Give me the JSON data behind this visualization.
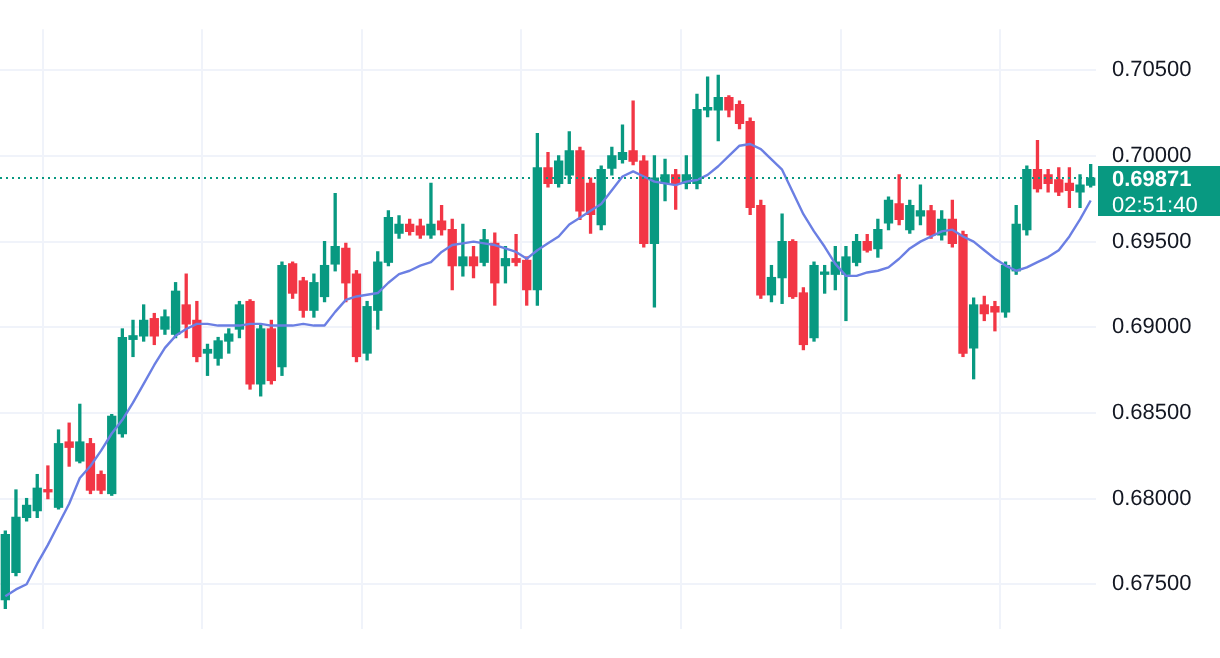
{
  "chart_data": {
    "type": "candlestick",
    "categories": [
      null,
      null,
      null,
      null,
      null,
      null,
      null,
      null,
      null,
      null,
      null,
      null,
      null,
      null,
      null,
      null,
      null,
      null,
      null,
      null,
      null,
      null,
      null,
      null,
      null,
      null,
      null,
      null,
      null,
      null,
      null,
      null,
      null,
      null,
      null,
      null,
      null,
      null,
      null,
      null,
      null,
      null,
      null,
      null,
      null,
      null,
      null,
      null,
      null,
      null,
      null,
      null,
      null,
      null,
      null,
      null,
      null,
      null,
      null,
      null,
      null,
      null,
      null,
      null,
      null,
      null,
      null,
      null,
      null,
      null,
      null,
      null,
      null,
      null,
      null,
      null,
      null,
      null,
      null,
      null,
      null,
      null,
      null,
      null,
      null,
      null,
      null,
      null,
      null,
      null,
      null,
      null,
      null,
      null,
      null,
      null,
      null,
      null,
      null,
      null,
      null,
      null,
      null
    ],
    "ohlc": [
      [
        0.6741,
        0.6781,
        0.6736,
        0.6779
      ],
      [
        0.6757,
        0.6805,
        0.6755,
        0.6789
      ],
      [
        0.6789,
        0.68,
        0.6787,
        0.6796
      ],
      [
        0.6793,
        0.6814,
        0.6789,
        0.6806
      ],
      [
        0.6805,
        0.6819,
        0.68,
        0.6804
      ],
      [
        0.6795,
        0.684,
        0.6794,
        0.6832
      ],
      [
        0.6833,
        0.6844,
        0.6819,
        0.683
      ],
      [
        0.6822,
        0.6855,
        0.6821,
        0.6833
      ],
      [
        0.6832,
        0.6835,
        0.6803,
        0.6805
      ],
      [
        0.6814,
        0.6816,
        0.6803,
        0.6805
      ],
      [
        0.6803,
        0.6849,
        0.6802,
        0.6848
      ],
      [
        0.6838,
        0.6899,
        0.6836,
        0.6894
      ],
      [
        0.6893,
        0.6904,
        0.6883,
        0.6895
      ],
      [
        0.6895,
        0.6913,
        0.6892,
        0.6904
      ],
      [
        0.6905,
        0.6908,
        0.689,
        0.6895
      ],
      [
        0.6899,
        0.691,
        0.6896,
        0.6906
      ],
      [
        0.6896,
        0.6926,
        0.6894,
        0.6921
      ],
      [
        0.6913,
        0.6931,
        0.6894,
        0.6902
      ],
      [
        0.6904,
        0.6915,
        0.688,
        0.6883
      ],
      [
        0.6885,
        0.689,
        0.6872,
        0.6887
      ],
      [
        0.6882,
        0.6894,
        0.6878,
        0.6892
      ],
      [
        0.6892,
        0.6899,
        0.6885,
        0.6896
      ],
      [
        0.6899,
        0.6915,
        0.6894,
        0.6913
      ],
      [
        0.6915,
        0.6916,
        0.6864,
        0.6867
      ],
      [
        0.6867,
        0.6901,
        0.686,
        0.6899
      ],
      [
        0.6899,
        0.6904,
        0.6867,
        0.6869
      ],
      [
        0.6877,
        0.6938,
        0.6872,
        0.6936
      ],
      [
        0.6937,
        0.6938,
        0.6917,
        0.692
      ],
      [
        0.6927,
        0.6929,
        0.6906,
        0.691
      ],
      [
        0.691,
        0.6931,
        0.6906,
        0.6926
      ],
      [
        0.6918,
        0.695,
        0.6915,
        0.6936
      ],
      [
        0.6937,
        0.6978,
        0.6933,
        0.6947
      ],
      [
        0.6946,
        0.6949,
        0.6915,
        0.6926
      ],
      [
        0.6931,
        0.6933,
        0.688,
        0.6883
      ],
      [
        0.6885,
        0.6915,
        0.6881,
        0.6912
      ],
      [
        0.691,
        0.6944,
        0.6899,
        0.6938
      ],
      [
        0.6938,
        0.6968,
        0.6936,
        0.6964
      ],
      [
        0.6955,
        0.6965,
        0.6952,
        0.696
      ],
      [
        0.696,
        0.6963,
        0.6954,
        0.6956
      ],
      [
        0.6959,
        0.6963,
        0.6952,
        0.6954
      ],
      [
        0.6954,
        0.6984,
        0.6952,
        0.696
      ],
      [
        0.6962,
        0.6971,
        0.6954,
        0.6957
      ],
      [
        0.6957,
        0.6963,
        0.6922,
        0.6936
      ],
      [
        0.6936,
        0.696,
        0.693,
        0.6941
      ],
      [
        0.6941,
        0.6947,
        0.6929,
        0.6936
      ],
      [
        0.6938,
        0.6957,
        0.6936,
        0.6951
      ],
      [
        0.6949,
        0.6955,
        0.6913,
        0.6926
      ],
      [
        0.6936,
        0.6947,
        0.6926,
        0.694
      ],
      [
        0.694,
        0.6954,
        0.6936,
        0.6938
      ],
      [
        0.6939,
        0.6941,
        0.6913,
        0.6922
      ],
      [
        0.6922,
        0.7013,
        0.6913,
        0.6993
      ],
      [
        0.6993,
        0.7002,
        0.6982,
        0.6984
      ],
      [
        0.6984,
        0.7,
        0.6982,
        0.6997
      ],
      [
        0.6989,
        0.7014,
        0.6984,
        0.7003
      ],
      [
        0.7003,
        0.7005,
        0.6963,
        0.6968
      ],
      [
        0.6984,
        0.6987,
        0.6955,
        0.6966
      ],
      [
        0.696,
        0.6994,
        0.6957,
        0.6992
      ],
      [
        0.6993,
        0.7005,
        0.6989,
        0.7
      ],
      [
        0.6998,
        0.7018,
        0.6996,
        0.7002
      ],
      [
        0.7003,
        0.7032,
        0.6995,
        0.6997
      ],
      [
        0.6997,
        0.7,
        0.6947,
        0.6949
      ],
      [
        0.6949,
        0.7,
        0.6912,
        0.6987
      ],
      [
        0.6984,
        0.6998,
        0.6974,
        0.6989
      ],
      [
        0.6989,
        0.6992,
        0.6969,
        0.6984
      ],
      [
        0.6984,
        0.7,
        0.6981,
        0.6989
      ],
      [
        0.6984,
        0.7036,
        0.6981,
        0.7027
      ],
      [
        0.7027,
        0.7046,
        0.7023,
        0.7028
      ],
      [
        0.7027,
        0.7047,
        0.7009,
        0.7034
      ],
      [
        0.7034,
        0.7035,
        0.7023,
        0.7027
      ],
      [
        0.703,
        0.7032,
        0.7016,
        0.7019
      ],
      [
        0.702,
        0.7022,
        0.6966,
        0.697
      ],
      [
        0.6971,
        0.6974,
        0.6917,
        0.6919
      ],
      [
        0.6919,
        0.6936,
        0.6915,
        0.6929
      ],
      [
        0.6929,
        0.6966,
        0.6914,
        0.695
      ],
      [
        0.695,
        0.6951,
        0.6917,
        0.6918
      ],
      [
        0.692,
        0.6923,
        0.6887,
        0.689
      ],
      [
        0.6894,
        0.6938,
        0.6892,
        0.6936
      ],
      [
        0.6931,
        0.6936,
        0.692,
        0.6932
      ],
      [
        0.6931,
        0.6947,
        0.6922,
        0.6938
      ],
      [
        0.6931,
        0.6947,
        0.6904,
        0.6941
      ],
      [
        0.6938,
        0.6954,
        0.6936,
        0.695
      ],
      [
        0.695,
        0.6954,
        0.6944,
        0.6945
      ],
      [
        0.6946,
        0.6963,
        0.6941,
        0.6957
      ],
      [
        0.6961,
        0.6976,
        0.6957,
        0.6974
      ],
      [
        0.6972,
        0.6989,
        0.696,
        0.6963
      ],
      [
        0.6957,
        0.6974,
        0.6955,
        0.6971
      ],
      [
        0.6965,
        0.6983,
        0.696,
        0.6968
      ],
      [
        0.6968,
        0.6971,
        0.6952,
        0.6954
      ],
      [
        0.6954,
        0.6968,
        0.6951,
        0.6963
      ],
      [
        0.6963,
        0.6974,
        0.6947,
        0.6949
      ],
      [
        0.6954,
        0.6956,
        0.6883,
        0.6885
      ],
      [
        0.6888,
        0.6917,
        0.687,
        0.6913
      ],
      [
        0.6913,
        0.6918,
        0.6904,
        0.6908
      ],
      [
        0.6912,
        0.6915,
        0.6898,
        0.6909
      ],
      [
        0.6909,
        0.6938,
        0.6906,
        0.6936
      ],
      [
        0.6933,
        0.6971,
        0.6931,
        0.696
      ],
      [
        0.6957,
        0.6994,
        0.6954,
        0.6992
      ],
      [
        0.6992,
        0.7009,
        0.6979,
        0.6981
      ],
      [
        0.6989,
        0.6992,
        0.6979,
        0.6984
      ],
      [
        0.6986,
        0.6993,
        0.6977,
        0.6979
      ],
      [
        0.6984,
        0.6993,
        0.697,
        0.698
      ],
      [
        0.6979,
        0.6989,
        0.697,
        0.6983
      ],
      [
        0.6983,
        0.6995,
        0.6982,
        0.69871
      ]
    ],
    "colors": [
      "#089981",
      "#089981",
      "#089981",
      "#089981",
      "#f23645",
      "#089981",
      "#f23645",
      "#089981",
      "#f23645",
      "#f23645",
      "#089981",
      "#089981",
      "#089981",
      "#089981",
      "#f23645",
      "#089981",
      "#089981",
      "#f23645",
      "#f23645",
      "#089981",
      "#089981",
      "#089981",
      "#089981",
      "#f23645",
      "#089981",
      "#f23645",
      "#089981",
      "#f23645",
      "#f23645",
      "#089981",
      "#089981",
      "#089981",
      "#f23645",
      "#f23645",
      "#089981",
      "#089981",
      "#089981",
      "#089981",
      "#f23645",
      "#f23645",
      "#089981",
      "#f23645",
      "#f23645",
      "#089981",
      "#f23645",
      "#089981",
      "#f23645",
      "#089981",
      "#f23645",
      "#f23645",
      "#089981",
      "#f23645",
      "#089981",
      "#089981",
      "#f23645",
      "#f23645",
      "#089981",
      "#089981",
      "#089981",
      "#f23645",
      "#f23645",
      "#089981",
      "#089981",
      "#f23645",
      "#089981",
      "#089981",
      "#089981",
      "#089981",
      "#f23645",
      "#f23645",
      "#f23645",
      "#f23645",
      "#089981",
      "#089981",
      "#f23645",
      "#f23645",
      "#089981",
      "#089981",
      "#089981",
      "#089981",
      "#089981",
      "#f23645",
      "#089981",
      "#089981",
      "#f23645",
      "#089981",
      "#089981",
      "#f23645",
      "#089981",
      "#f23645",
      "#f23645",
      "#089981",
      "#f23645",
      "#f23645",
      "#089981",
      "#089981",
      "#089981",
      "#f23645",
      "#f23645",
      "#f23645",
      "#f23645",
      "#089981",
      "#089981"
    ],
    "series": [
      {
        "type": "line",
        "color": "#6b7fe3",
        "values": [
          0.6743,
          0.6747,
          0.675,
          0.6762,
          0.6773,
          0.6785,
          0.6797,
          0.6812,
          0.6819,
          0.6828,
          0.6838,
          0.6846,
          0.6856,
          0.6867,
          0.6878,
          0.6888,
          0.6895,
          0.6899,
          0.6902,
          0.6902,
          0.6901,
          0.6901,
          0.6901,
          0.6902,
          0.6902,
          0.6901,
          0.6901,
          0.6901,
          0.6902,
          0.6901,
          0.6901,
          0.6909,
          0.6916,
          0.6918,
          0.6919,
          0.692,
          0.6926,
          0.6931,
          0.6933,
          0.6936,
          0.6938,
          0.6944,
          0.6948,
          0.6949,
          0.695,
          0.6949,
          0.6948,
          0.6946,
          0.6944,
          0.694,
          0.6945,
          0.6949,
          0.6953,
          0.696,
          0.6964,
          0.6968,
          0.6972,
          0.698,
          0.6988,
          0.6991,
          0.6988,
          0.6985,
          0.6984,
          0.6983,
          0.6985,
          0.6986,
          0.6989,
          0.6994,
          0.7,
          0.7006,
          0.7007,
          0.7004,
          0.6998,
          0.6992,
          0.6979,
          0.6966,
          0.6956,
          0.6947,
          0.6937,
          0.693,
          0.693,
          0.6932,
          0.6933,
          0.6935,
          0.694,
          0.6946,
          0.695,
          0.6953,
          0.6956,
          0.6957,
          0.6953,
          0.695,
          0.6945,
          0.694,
          0.6936,
          0.6933,
          0.6935,
          0.6938,
          0.6941,
          0.6945,
          0.6953,
          0.6963,
          0.6974
        ]
      }
    ],
    "ylim": [
      0.6724,
      0.7074
    ],
    "yticks": [
      {
        "value": 0.675,
        "label": "0.67500"
      },
      {
        "value": 0.68,
        "label": "0.68000"
      },
      {
        "value": 0.685,
        "label": "0.68500"
      },
      {
        "value": 0.69,
        "label": "0.69000"
      },
      {
        "value": 0.695,
        "label": "0.69500"
      },
      {
        "value": 0.7,
        "label": "0.70000"
      },
      {
        "value": 0.705,
        "label": "0.70500"
      }
    ],
    "tick_labels": "y",
    "grid": true,
    "ref_lines": [
      {
        "axis": "y",
        "value": 0.69871,
        "label": "0.69871",
        "color": "#089981",
        "line_style": "dotted"
      }
    ],
    "annotations": [
      "02:51:40"
    ]
  }
}
